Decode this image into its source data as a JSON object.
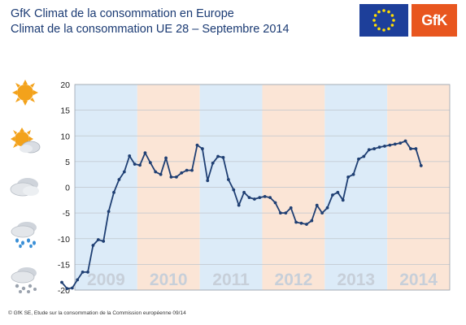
{
  "header": {
    "title_line1": "GfK Climat de la consommation en Europe",
    "title_line2": "Climat de la consommation UE 28 – Septembre 2014",
    "gfk_logo_text": "GfK"
  },
  "footer": {
    "source": "© GfK SE, Etude sur la consommation de la Commission européenne 09/14"
  },
  "colors": {
    "line": "#1f3f73",
    "band_blue": "#dcebf8",
    "band_orange": "#fbe5d6",
    "year_label": "#c7cfd9",
    "eu_blue": "#1d3f9a",
    "eu_star": "#ffdd00",
    "gfk_orange": "#e8561f"
  },
  "icons": [
    "sun-icon",
    "sun-cloud-icon",
    "cloud-icon",
    "rain-cloud-icon",
    "snow-cloud-icon"
  ],
  "chart_data": {
    "type": "line",
    "title": "",
    "xlabel": "",
    "ylabel": "",
    "ylim": [
      -20,
      20
    ],
    "yticks": [
      20,
      15,
      10,
      5,
      0,
      -5,
      -10,
      -15,
      -20
    ],
    "grid": true,
    "years": [
      {
        "label": "2009",
        "band": "blue"
      },
      {
        "label": "2010",
        "band": "orange"
      },
      {
        "label": "2011",
        "band": "blue"
      },
      {
        "label": "2012",
        "band": "orange"
      },
      {
        "label": "2013",
        "band": "blue"
      },
      {
        "label": "2014",
        "band": "orange"
      }
    ],
    "series": [
      {
        "start": "2008-10",
        "values": [
          -18.5,
          -19.7,
          -19.6,
          -18.0,
          -16.5,
          -16.5,
          -11.3,
          -10.2,
          -10.5,
          -4.7,
          -1.0,
          1.5,
          3.0,
          6.1,
          4.5,
          4.3,
          6.7,
          4.8,
          3.0,
          2.5,
          5.7,
          2.0,
          2.0,
          2.8,
          3.3,
          3.3,
          8.2,
          7.5,
          1.3,
          4.7,
          6.0,
          5.8,
          1.5,
          -0.5,
          -3.5,
          -1.0,
          -2.0,
          -2.3,
          -2.0,
          -1.8,
          -2.0,
          -3.0,
          -5.0,
          -5.0,
          -4.0,
          -6.8,
          -7.0,
          -7.2,
          -6.5,
          -3.5,
          -5.0,
          -4.0,
          -1.5,
          -1.0,
          -2.5,
          2.0,
          2.5,
          5.5,
          6.0,
          7.3,
          7.5,
          7.8,
          8.0,
          8.2,
          8.4,
          8.6,
          9.0,
          7.5,
          7.5,
          4.2
        ]
      }
    ]
  }
}
